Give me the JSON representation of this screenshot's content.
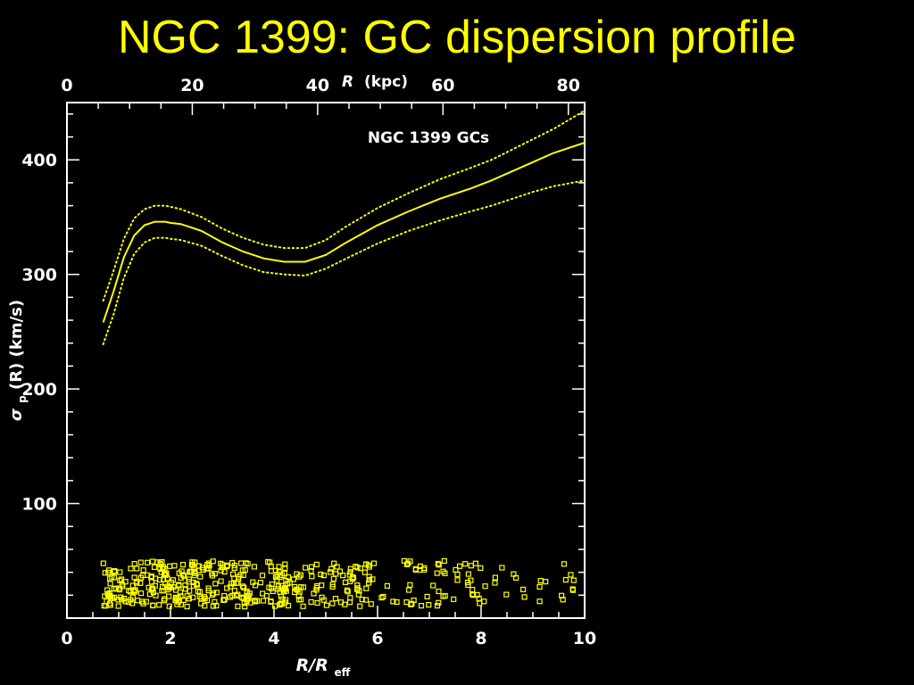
{
  "slide": {
    "title": "NGC 1399: GC dispersion profile"
  },
  "colors": {
    "background": "#000000",
    "accent": "#ffff00",
    "axes": "#ffffff"
  },
  "chart_data": {
    "type": "line",
    "annotation": "NGC 1399 GCs",
    "xlabel": "R/R_eff",
    "xlabel_main": "R/R",
    "xlabel_sub": "eff",
    "ylabel": "σp(R) (km/s)",
    "ylabel_sigma": "σ",
    "ylabel_p": "p",
    "ylabel_rest": "(R)  (km/s)",
    "top_xlabel_var": "R",
    "top_xlabel_unit": "(kpc)",
    "xlim": [
      0,
      10
    ],
    "ylim": [
      0,
      450
    ],
    "x_ticks": [
      "0",
      "2",
      "4",
      "6",
      "8",
      "10"
    ],
    "y_ticks": [
      "100",
      "200",
      "300",
      "400"
    ],
    "top_xlim": [
      0,
      82.6
    ],
    "top_ticks": [
      "0",
      "20",
      "40",
      "60",
      "80"
    ],
    "grid": false,
    "series": [
      {
        "style": "solid",
        "x": [
          0.7,
          0.9,
          1.1,
          1.3,
          1.5,
          1.7,
          1.9,
          2.0,
          2.2,
          2.6,
          3.0,
          3.4,
          3.8,
          4.2,
          4.6,
          5.0,
          5.4,
          6.0,
          6.6,
          7.2,
          7.8,
          8.2,
          8.6,
          9.0,
          9.4,
          10.0
        ],
        "y": [
          258,
          285,
          315,
          334,
          343,
          346,
          346,
          345,
          344,
          338,
          328,
          320,
          314,
          311,
          311,
          317,
          328,
          343,
          355,
          366,
          375,
          382,
          390,
          398,
          406,
          415
        ]
      },
      {
        "style": "dotted",
        "x": [
          0.7,
          0.9,
          1.1,
          1.3,
          1.5,
          1.7,
          1.9,
          2.0,
          2.2,
          2.6,
          3.0,
          3.4,
          3.8,
          4.2,
          4.6,
          5.0,
          5.4,
          6.0,
          6.6,
          7.2,
          7.8,
          8.2,
          8.6,
          9.0,
          9.4,
          10.0
        ],
        "y": [
          277,
          303,
          331,
          349,
          357,
          360,
          360,
          359,
          357,
          350,
          340,
          332,
          326,
          323,
          323,
          330,
          342,
          358,
          371,
          383,
          393,
          400,
          409,
          418,
          427,
          443
        ]
      },
      {
        "style": "dotted",
        "x": [
          0.7,
          0.9,
          1.1,
          1.3,
          1.5,
          1.7,
          1.9,
          2.0,
          2.2,
          2.6,
          3.0,
          3.4,
          3.8,
          4.2,
          4.6,
          5.0,
          5.4,
          6.0,
          6.6,
          7.2,
          7.8,
          8.2,
          8.6,
          9.0,
          9.4,
          10.0
        ],
        "y": [
          239,
          265,
          297,
          318,
          328,
          332,
          332,
          331,
          330,
          325,
          316,
          308,
          302,
          300,
          299,
          305,
          314,
          327,
          338,
          347,
          355,
          360,
          366,
          372,
          377,
          382
        ]
      }
    ],
    "scatter_note": "individual GC velocities plotted as open squares along bottom, y range ~10-50",
    "scatter_density": [
      {
        "from": 0.7,
        "to": 2.5,
        "count": 160
      },
      {
        "from": 2.5,
        "to": 4.5,
        "count": 150
      },
      {
        "from": 4.5,
        "to": 6.0,
        "count": 70
      },
      {
        "from": 6.0,
        "to": 8.0,
        "count": 55
      },
      {
        "from": 8.0,
        "to": 9.9,
        "count": 22
      }
    ],
    "scatter_y_range": [
      10,
      50
    ]
  }
}
